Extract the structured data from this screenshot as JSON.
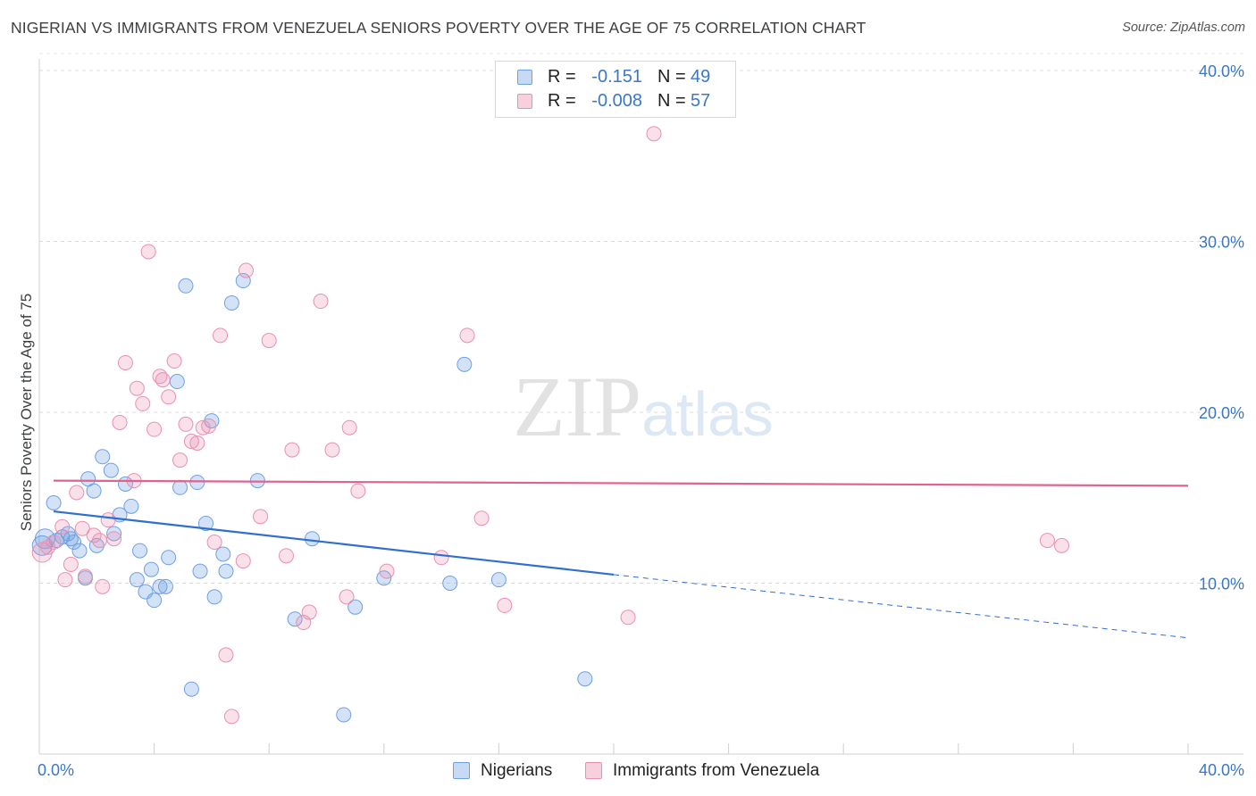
{
  "title": "NIGERIAN VS IMMIGRANTS FROM VENEZUELA SENIORS POVERTY OVER THE AGE OF 75 CORRELATION CHART",
  "source": "Source: ZipAtlas.com",
  "watermark": "ZIPatlas",
  "legend": {
    "r_label": "R =",
    "n_label": "N =",
    "rows": [
      {
        "name": "Nigerians",
        "r": "-0.151",
        "n": "49",
        "color": "#6ea0e6"
      },
      {
        "name": "Immigrants from Venezuela",
        "r": "-0.008",
        "n": "57",
        "color": "#ea8fb0"
      }
    ]
  },
  "chart_data": {
    "type": "scatter",
    "title": "NIGERIAN VS IMMIGRANTS FROM VENEZUELA SENIORS POVERTY OVER THE AGE OF 75 CORRELATION CHART",
    "xlabel": "",
    "ylabel": "Seniors Poverty Over the Age of 75",
    "xlim": [
      0,
      40
    ],
    "ylim": [
      0,
      40
    ],
    "x_tick_labels": [
      "0.0%",
      "40.0%"
    ],
    "y_ticks": [
      10,
      20,
      30,
      40
    ],
    "y_tick_labels": [
      "10.0%",
      "20.0%",
      "30.0%",
      "40.0%"
    ],
    "grid": true,
    "legend_position": "top-center",
    "series": [
      {
        "name": "Nigerians",
        "color": "#6ea0e6",
        "line_color": "#2f6fd0",
        "trend": {
          "x_start": 0.5,
          "y_start": 14.2,
          "x_solid_end": 20.0,
          "y_solid_end": 10.5,
          "x_dash_end": 40.0,
          "y_dash_end": 6.8
        },
        "points": [
          [
            0.1,
            12.2
          ],
          [
            0.2,
            12.6
          ],
          [
            0.5,
            14.7
          ],
          [
            0.6,
            12.5
          ],
          [
            0.8,
            12.7
          ],
          [
            1.0,
            12.9
          ],
          [
            1.1,
            12.6
          ],
          [
            1.2,
            12.4
          ],
          [
            1.4,
            11.9
          ],
          [
            1.6,
            10.3
          ],
          [
            1.7,
            16.1
          ],
          [
            1.9,
            15.4
          ],
          [
            2.0,
            12.2
          ],
          [
            2.2,
            17.4
          ],
          [
            2.5,
            16.6
          ],
          [
            2.6,
            12.9
          ],
          [
            2.8,
            14.0
          ],
          [
            3.0,
            15.8
          ],
          [
            3.2,
            14.5
          ],
          [
            3.4,
            10.2
          ],
          [
            3.5,
            11.9
          ],
          [
            3.7,
            9.5
          ],
          [
            3.9,
            10.8
          ],
          [
            4.0,
            9.0
          ],
          [
            4.2,
            9.8
          ],
          [
            4.4,
            9.8
          ],
          [
            4.5,
            11.5
          ],
          [
            4.8,
            21.8
          ],
          [
            4.9,
            15.6
          ],
          [
            5.1,
            27.4
          ],
          [
            5.3,
            3.8
          ],
          [
            5.5,
            15.9
          ],
          [
            5.6,
            10.7
          ],
          [
            5.8,
            13.5
          ],
          [
            6.0,
            19.5
          ],
          [
            6.1,
            9.2
          ],
          [
            6.4,
            11.7
          ],
          [
            6.5,
            10.7
          ],
          [
            6.7,
            26.4
          ],
          [
            7.1,
            27.7
          ],
          [
            7.6,
            16.0
          ],
          [
            8.9,
            7.9
          ],
          [
            9.5,
            12.6
          ],
          [
            10.6,
            2.3
          ],
          [
            11.0,
            8.6
          ],
          [
            12.0,
            10.3
          ],
          [
            14.3,
            10.0
          ],
          [
            14.8,
            22.8
          ],
          [
            16.0,
            10.2
          ],
          [
            19.0,
            4.4
          ]
        ]
      },
      {
        "name": "Immigrants from Venezuela",
        "color": "#ea8fb0",
        "line_color": "#e0638f",
        "trend": {
          "x_start": 0.5,
          "y_start": 16.0,
          "x_solid_end": 40.0,
          "y_solid_end": 15.7
        },
        "points": [
          [
            0.1,
            11.8
          ],
          [
            0.3,
            12.1
          ],
          [
            0.5,
            12.4
          ],
          [
            0.8,
            13.3
          ],
          [
            0.9,
            10.2
          ],
          [
            1.1,
            11.1
          ],
          [
            1.3,
            15.3
          ],
          [
            1.5,
            13.2
          ],
          [
            1.6,
            10.4
          ],
          [
            1.9,
            12.8
          ],
          [
            2.1,
            12.5
          ],
          [
            2.2,
            9.8
          ],
          [
            2.4,
            13.7
          ],
          [
            2.6,
            12.6
          ],
          [
            2.8,
            19.4
          ],
          [
            3.0,
            22.9
          ],
          [
            3.3,
            16.0
          ],
          [
            3.4,
            21.4
          ],
          [
            3.6,
            20.5
          ],
          [
            3.8,
            29.4
          ],
          [
            4.0,
            19.0
          ],
          [
            4.2,
            22.1
          ],
          [
            4.3,
            21.9
          ],
          [
            4.5,
            20.9
          ],
          [
            4.7,
            23.0
          ],
          [
            4.9,
            17.2
          ],
          [
            5.1,
            19.3
          ],
          [
            5.3,
            18.3
          ],
          [
            5.5,
            18.2
          ],
          [
            5.7,
            19.1
          ],
          [
            5.9,
            19.2
          ],
          [
            6.1,
            12.4
          ],
          [
            6.3,
            24.5
          ],
          [
            6.5,
            5.8
          ],
          [
            6.7,
            2.2
          ],
          [
            7.1,
            11.3
          ],
          [
            7.2,
            28.3
          ],
          [
            7.7,
            13.9
          ],
          [
            8.0,
            24.2
          ],
          [
            8.6,
            11.6
          ],
          [
            8.8,
            17.8
          ],
          [
            9.2,
            7.7
          ],
          [
            9.4,
            8.3
          ],
          [
            9.8,
            26.5
          ],
          [
            10.2,
            17.8
          ],
          [
            10.7,
            9.2
          ],
          [
            10.8,
            19.1
          ],
          [
            11.1,
            15.4
          ],
          [
            12.1,
            10.7
          ],
          [
            14.0,
            11.5
          ],
          [
            14.9,
            24.5
          ],
          [
            15.4,
            13.8
          ],
          [
            16.2,
            8.7
          ],
          [
            20.5,
            8.0
          ],
          [
            21.4,
            36.3
          ],
          [
            35.1,
            12.5
          ],
          [
            35.6,
            12.2
          ]
        ]
      }
    ]
  }
}
